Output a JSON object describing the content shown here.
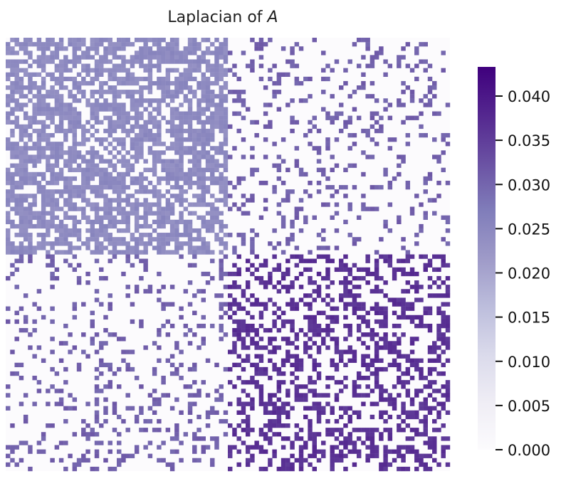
{
  "chart_data": {
    "type": "heatmap",
    "title": "Laplacian of A",
    "title_parts": [
      {
        "text": "Laplacian of ",
        "italic": false
      },
      {
        "text": "A",
        "italic": true
      }
    ],
    "rows": 100,
    "cols": 100,
    "block_size": 50,
    "value_min": 0.0,
    "value_max": 0.0433,
    "colorbar": {
      "ticks": [
        0.0,
        0.005,
        0.01,
        0.015,
        0.02,
        0.025,
        0.03,
        0.035,
        0.04
      ],
      "tick_labels": [
        "0.000",
        "0.005",
        "0.010",
        "0.015",
        "0.020",
        "0.025",
        "0.030",
        "0.035",
        "0.040"
      ],
      "colormap": "Purples",
      "colors": [
        "#fcfbfd",
        "#efedf5",
        "#dadaeb",
        "#bcbddc",
        "#9e9ac8",
        "#807dba",
        "#6a51a3",
        "#54278f",
        "#3f007d"
      ]
    },
    "blocks": [
      {
        "name": "top-left",
        "density": 0.68,
        "value": 0.0245
      },
      {
        "name": "top-right",
        "density": 0.17,
        "value": 0.0305
      },
      {
        "name": "bottom-left",
        "density": 0.17,
        "value": 0.0305
      },
      {
        "name": "bottom-right",
        "density": 0.42,
        "value": 0.0365
      }
    ],
    "grid": false
  }
}
